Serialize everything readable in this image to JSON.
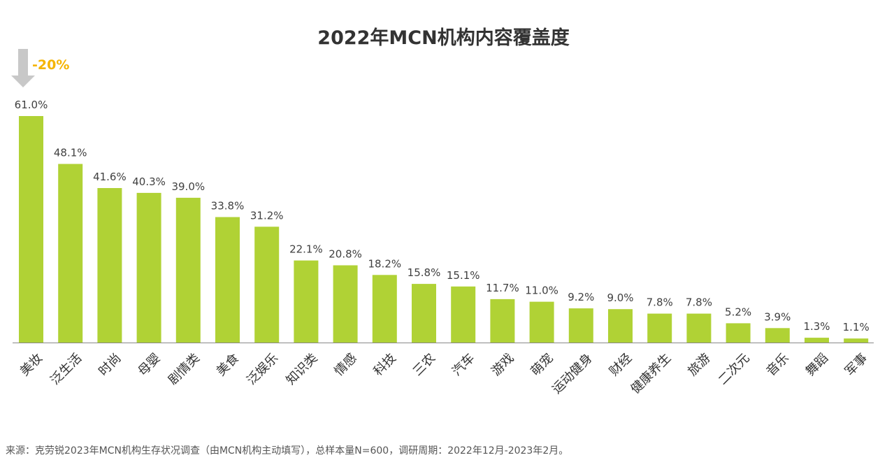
{
  "title": "2022年MCN机构内容覆盖度",
  "callout": {
    "text": "-20%",
    "color": "#F5B400",
    "arrow_color": "#C8C8C8"
  },
  "source": "来源：克劳锐2023年MCN机构生存状况调查（由MCN机构主动填写），总样本量N=600，调研周期：2022年12月-2023年2月。",
  "colors": {
    "bar": "#B0D235",
    "axis": "#888888"
  },
  "chart_data": {
    "type": "bar",
    "title": "2022年MCN机构内容覆盖度",
    "xlabel": "",
    "ylabel": "",
    "ylim": [
      0,
      61
    ],
    "grid": false,
    "categories": [
      "美妆",
      "泛生活",
      "时尚",
      "母婴",
      "剧情类",
      "美食",
      "泛娱乐",
      "知识类",
      "情感",
      "科技",
      "三农",
      "汽车",
      "游戏",
      "萌宠",
      "运动健身",
      "财经",
      "健康养生",
      "旅游",
      "二次元",
      "音乐",
      "舞蹈",
      "军事"
    ],
    "values": [
      61.0,
      48.1,
      41.6,
      40.3,
      39.0,
      33.8,
      31.2,
      22.1,
      20.8,
      18.2,
      15.8,
      15.1,
      11.7,
      11.0,
      9.2,
      9.0,
      7.8,
      7.8,
      5.2,
      3.9,
      1.3,
      1.1
    ],
    "value_labels": [
      "61.0%",
      "48.1%",
      "41.6%",
      "40.3%",
      "39.0%",
      "33.8%",
      "31.2%",
      "22.1%",
      "20.8%",
      "18.2%",
      "15.8%",
      "15.1%",
      "11.7%",
      "11.0%",
      "9.2%",
      "9.0%",
      "7.8%",
      "7.8%",
      "5.2%",
      "3.9%",
      "1.3%",
      "1.1%"
    ]
  }
}
